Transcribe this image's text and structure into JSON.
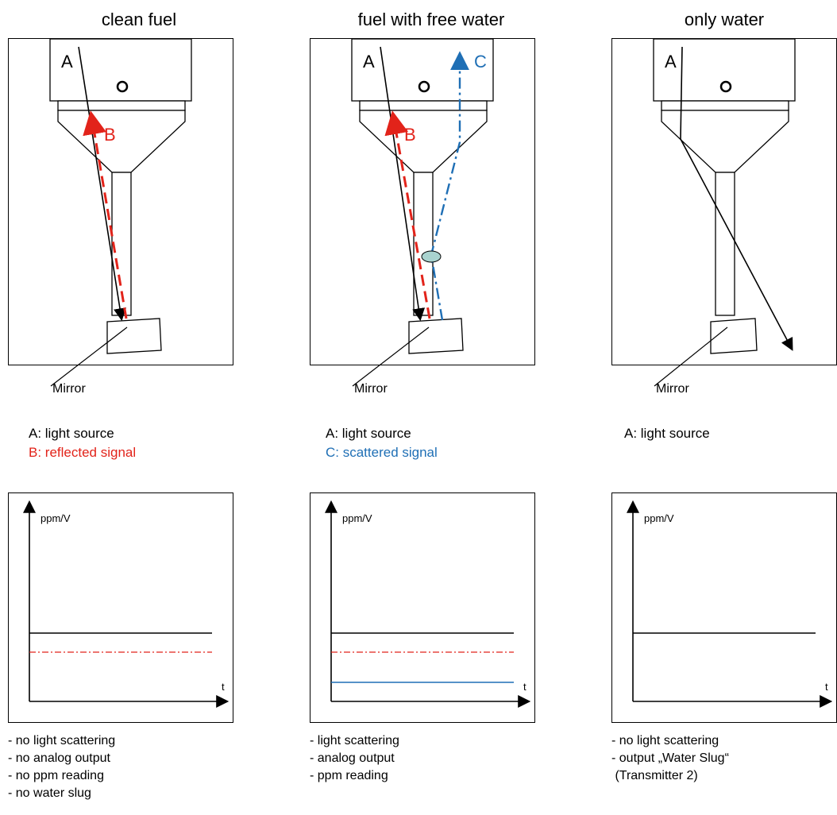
{
  "columns": [
    {
      "title": "clean fuel",
      "labels": {
        "a": "A",
        "b": "B"
      },
      "mirror": "Mirror",
      "legend": {
        "a": "A: light source",
        "b": "B: reflected signal"
      },
      "graph": {
        "ylabel": "ppm/V",
        "xlabel": "t"
      },
      "notes": [
        "- no light scattering",
        "- no analog output",
        "- no ppm reading",
        "- no water slug"
      ]
    },
    {
      "title": "fuel with free water",
      "labels": {
        "a": "A",
        "b": "B",
        "c": "C"
      },
      "mirror": "Mirror",
      "legend": {
        "a": "A: light source",
        "c": "C: scattered signal"
      },
      "graph": {
        "ylabel": "ppm/V",
        "xlabel": "t"
      },
      "notes": [
        "- light scattering",
        "- analog output",
        "- ppm reading"
      ]
    },
    {
      "title": "only water",
      "labels": {
        "a": "A"
      },
      "mirror": "Mirror",
      "legend": {
        "a": "A: light source"
      },
      "graph": {
        "ylabel": "ppm/V",
        "xlabel": "t"
      },
      "notes": [
        "- no light scattering",
        "- output „Water Slug“",
        " (Transmitter 2)"
      ]
    }
  ],
  "colors": {
    "light_source": "#000000",
    "reflected": "#e2231a",
    "scattered": "#1f6fb5",
    "particle": "#a9d3cf"
  }
}
